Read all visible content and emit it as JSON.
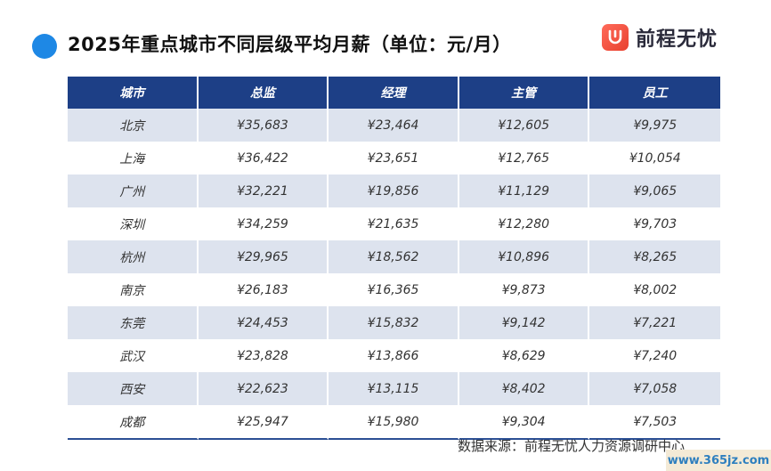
{
  "title": "2025年重点城市不同层级平均月薪（单位：元/月）",
  "logo_text": "前程无忧",
  "table": {
    "headers": [
      "城市",
      "总监",
      "经理",
      "主管",
      "员工"
    ],
    "rows": [
      [
        "北京",
        "¥35,683",
        "¥23,464",
        "¥12,605",
        "¥9,975"
      ],
      [
        "上海",
        "¥36,422",
        "¥23,651",
        "¥12,765",
        "¥10,054"
      ],
      [
        "广州",
        "¥32,221",
        "¥19,856",
        "¥11,129",
        "¥9,065"
      ],
      [
        "深圳",
        "¥34,259",
        "¥21,635",
        "¥12,280",
        "¥9,703"
      ],
      [
        "杭州",
        "¥29,965",
        "¥18,562",
        "¥10,896",
        "¥8,265"
      ],
      [
        "南京",
        "¥26,183",
        "¥16,365",
        "¥9,873",
        "¥8,002"
      ],
      [
        "东莞",
        "¥24,453",
        "¥15,832",
        "¥9,142",
        "¥7,221"
      ],
      [
        "武汉",
        "¥23,828",
        "¥13,866",
        "¥8,629",
        "¥7,240"
      ],
      [
        "西安",
        "¥22,623",
        "¥13,115",
        "¥8,402",
        "¥7,058"
      ],
      [
        "成都",
        "¥25,947",
        "¥15,980",
        "¥9,304",
        "¥7,503"
      ]
    ]
  },
  "source": "数据来源：前程无忧人力资源调研中心",
  "watermark": "www.365jz.com",
  "colors": {
    "header_bg": "#1d3f86",
    "stripe": "#dde3ee",
    "title_dot": "#1e88e5",
    "logo_accent": "#e8412f"
  }
}
